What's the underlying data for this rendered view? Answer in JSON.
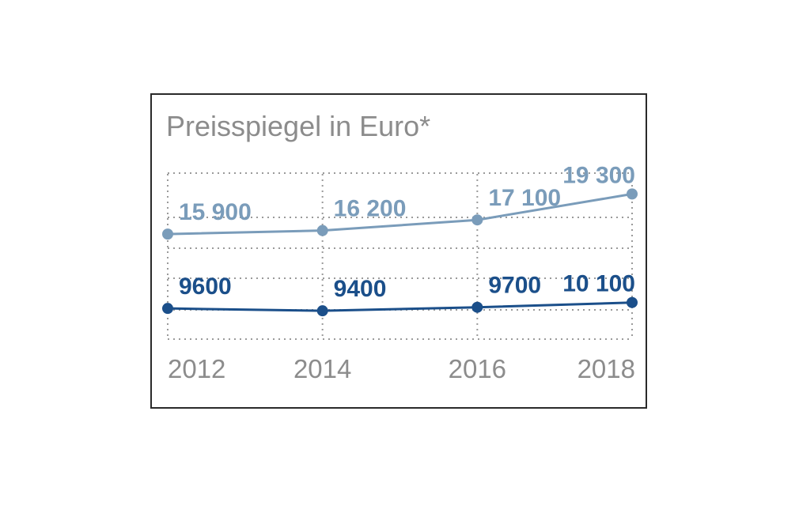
{
  "chart_data": {
    "type": "line",
    "title": "Preisspiegel in Euro*",
    "xlabel": "",
    "ylabel": "",
    "x": [
      2012,
      2014,
      2016,
      2018
    ],
    "x_tick_labels": [
      "2012",
      "2014",
      "2016",
      "2018"
    ],
    "ylim": [
      7000,
      21000
    ],
    "grid": true,
    "legend": "none",
    "series": [
      {
        "values": [
          15900,
          16200,
          17100,
          19300
        ],
        "labels": [
          "15 900",
          "16 200",
          "17 100",
          "19 300"
        ],
        "color": "#7a9cba"
      },
      {
        "values": [
          9600,
          9400,
          9700,
          10100
        ],
        "labels": [
          "9600",
          "9400",
          "9700",
          "10 100"
        ],
        "color": "#1b4f8a"
      }
    ]
  }
}
